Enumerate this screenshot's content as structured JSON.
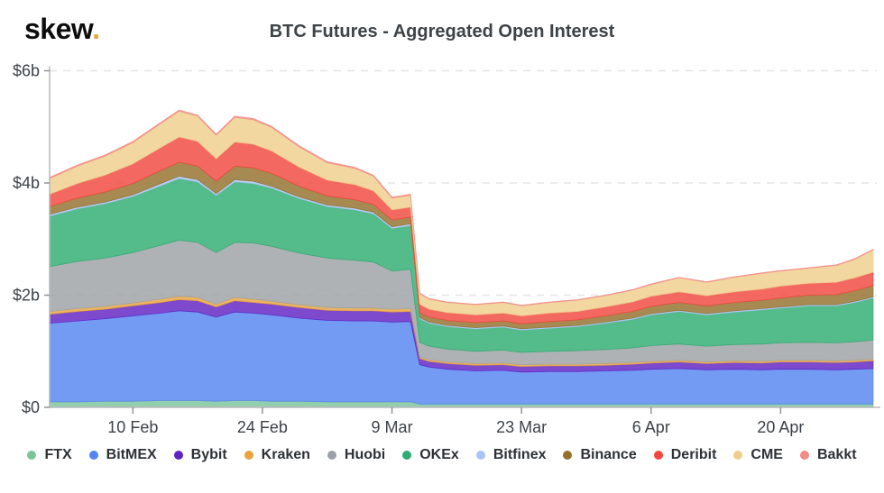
{
  "header": {
    "logo_text": "skew",
    "logo_dot": ".",
    "title": "BTC Futures - Aggregated Open Interest"
  },
  "chart_data": {
    "type": "area",
    "stacked": true,
    "title": "BTC Futures - Aggregated Open Interest",
    "units": "billions USD",
    "xlabel": "",
    "ylabel": "",
    "ylim": [
      0,
      6
    ],
    "x_range": [
      0,
      89
    ],
    "x_unit": "days since 1 Feb 2020",
    "grid": "dashed-horizontal",
    "legend_position": "bottom",
    "y_ticks": [
      {
        "value": 0,
        "label": "$0"
      },
      {
        "value": 2,
        "label": "$2b"
      },
      {
        "value": 4,
        "label": "$4b"
      },
      {
        "value": 6,
        "label": "$6b"
      }
    ],
    "x_ticks": [
      {
        "day": 9,
        "label": "10 Feb"
      },
      {
        "day": 23,
        "label": "24 Feb"
      },
      {
        "day": 37,
        "label": "9 Mar"
      },
      {
        "day": 51,
        "label": "23 Mar"
      },
      {
        "day": 65,
        "label": "6 Apr"
      },
      {
        "day": 79,
        "label": "20 Apr"
      }
    ],
    "days": [
      0,
      3,
      6,
      9,
      12,
      14,
      16,
      18,
      20,
      22,
      24,
      27,
      30,
      33,
      35,
      37,
      39,
      40,
      41,
      43,
      46,
      49,
      51,
      54,
      57,
      60,
      63,
      65,
      68,
      71,
      74,
      77,
      79,
      82,
      85,
      87,
      89
    ],
    "series": [
      {
        "name": "FTX",
        "color": "#7cc49b",
        "values": [
          0.1,
          0.1,
          0.11,
          0.11,
          0.12,
          0.12,
          0.12,
          0.11,
          0.12,
          0.12,
          0.11,
          0.11,
          0.1,
          0.1,
          0.1,
          0.1,
          0.1,
          0.06,
          0.06,
          0.06,
          0.06,
          0.06,
          0.06,
          0.06,
          0.06,
          0.06,
          0.06,
          0.06,
          0.06,
          0.06,
          0.06,
          0.06,
          0.06,
          0.06,
          0.06,
          0.06,
          0.06
        ]
      },
      {
        "name": "BitMEX",
        "color": "#5585f0",
        "values": [
          1.4,
          1.44,
          1.47,
          1.52,
          1.56,
          1.6,
          1.58,
          1.5,
          1.58,
          1.56,
          1.54,
          1.48,
          1.45,
          1.44,
          1.44,
          1.42,
          1.43,
          0.7,
          0.66,
          0.62,
          0.59,
          0.6,
          0.57,
          0.58,
          0.58,
          0.59,
          0.6,
          0.62,
          0.63,
          0.61,
          0.62,
          0.61,
          0.62,
          0.62,
          0.61,
          0.62,
          0.63
        ]
      },
      {
        "name": "Bybit",
        "color": "#6022c3",
        "values": [
          0.16,
          0.17,
          0.17,
          0.18,
          0.19,
          0.2,
          0.2,
          0.18,
          0.2,
          0.19,
          0.19,
          0.19,
          0.18,
          0.18,
          0.18,
          0.18,
          0.18,
          0.11,
          0.1,
          0.1,
          0.1,
          0.1,
          0.1,
          0.1,
          0.1,
          0.1,
          0.11,
          0.11,
          0.12,
          0.11,
          0.12,
          0.12,
          0.13,
          0.13,
          0.13,
          0.13,
          0.14
        ]
      },
      {
        "name": "Kraken",
        "color": "#e8a33d",
        "values": [
          0.05,
          0.05,
          0.05,
          0.05,
          0.06,
          0.06,
          0.06,
          0.05,
          0.06,
          0.06,
          0.05,
          0.05,
          0.05,
          0.05,
          0.05,
          0.05,
          0.05,
          0.03,
          0.03,
          0.03,
          0.03,
          0.03,
          0.03,
          0.03,
          0.03,
          0.03,
          0.03,
          0.03,
          0.03,
          0.03,
          0.03,
          0.03,
          0.03,
          0.03,
          0.03,
          0.03,
          0.03
        ]
      },
      {
        "name": "Huobi",
        "color": "#9da1a5",
        "values": [
          0.8,
          0.84,
          0.86,
          0.9,
          0.96,
          1.0,
          0.98,
          0.92,
          0.98,
          1.0,
          0.98,
          0.92,
          0.88,
          0.85,
          0.82,
          0.68,
          0.7,
          0.26,
          0.24,
          0.23,
          0.22,
          0.23,
          0.22,
          0.23,
          0.24,
          0.25,
          0.26,
          0.28,
          0.29,
          0.28,
          0.29,
          0.31,
          0.31,
          0.32,
          0.32,
          0.33,
          0.34
        ]
      },
      {
        "name": "OKEx",
        "color": "#2eac72",
        "values": [
          0.9,
          0.94,
          0.97,
          1.0,
          1.06,
          1.1,
          1.08,
          1.02,
          1.08,
          1.06,
          1.04,
          0.97,
          0.92,
          0.9,
          0.86,
          0.76,
          0.78,
          0.42,
          0.41,
          0.4,
          0.4,
          0.41,
          0.4,
          0.41,
          0.43,
          0.47,
          0.51,
          0.55,
          0.58,
          0.56,
          0.58,
          0.61,
          0.62,
          0.65,
          0.66,
          0.7,
          0.75
        ]
      },
      {
        "name": "Bitfinex",
        "color": "#a9c4f5",
        "values": [
          0.03,
          0.03,
          0.03,
          0.03,
          0.04,
          0.04,
          0.04,
          0.03,
          0.04,
          0.04,
          0.03,
          0.03,
          0.03,
          0.03,
          0.03,
          0.03,
          0.03,
          0.02,
          0.02,
          0.02,
          0.02,
          0.02,
          0.02,
          0.02,
          0.02,
          0.02,
          0.02,
          0.02,
          0.02,
          0.02,
          0.02,
          0.02,
          0.02,
          0.02,
          0.02,
          0.02,
          0.02
        ]
      },
      {
        "name": "Binance",
        "color": "#94702c",
        "values": [
          0.14,
          0.16,
          0.18,
          0.2,
          0.23,
          0.25,
          0.24,
          0.22,
          0.24,
          0.24,
          0.23,
          0.19,
          0.16,
          0.15,
          0.14,
          0.12,
          0.12,
          0.09,
          0.09,
          0.09,
          0.09,
          0.09,
          0.09,
          0.1,
          0.1,
          0.11,
          0.12,
          0.13,
          0.14,
          0.14,
          0.15,
          0.15,
          0.16,
          0.17,
          0.18,
          0.19,
          0.2
        ]
      },
      {
        "name": "Deribit",
        "color": "#f2473f",
        "values": [
          0.22,
          0.26,
          0.3,
          0.35,
          0.41,
          0.45,
          0.44,
          0.4,
          0.43,
          0.42,
          0.4,
          0.34,
          0.28,
          0.27,
          0.24,
          0.18,
          0.18,
          0.15,
          0.14,
          0.14,
          0.14,
          0.14,
          0.14,
          0.15,
          0.15,
          0.16,
          0.17,
          0.18,
          0.19,
          0.18,
          0.19,
          0.2,
          0.21,
          0.21,
          0.22,
          0.23,
          0.24
        ]
      },
      {
        "name": "CME",
        "color": "#efce8c",
        "values": [
          0.28,
          0.31,
          0.34,
          0.38,
          0.43,
          0.46,
          0.45,
          0.42,
          0.44,
          0.44,
          0.42,
          0.36,
          0.31,
          0.29,
          0.26,
          0.21,
          0.21,
          0.19,
          0.18,
          0.18,
          0.18,
          0.19,
          0.18,
          0.19,
          0.2,
          0.2,
          0.21,
          0.21,
          0.25,
          0.24,
          0.26,
          0.28,
          0.27,
          0.27,
          0.3,
          0.33,
          0.4
        ]
      },
      {
        "name": "Bakkt",
        "color": "#f18b86",
        "values": [
          0.02,
          0.02,
          0.02,
          0.02,
          0.02,
          0.02,
          0.02,
          0.02,
          0.02,
          0.02,
          0.02,
          0.02,
          0.02,
          0.02,
          0.02,
          0.02,
          0.02,
          0.01,
          0.01,
          0.01,
          0.01,
          0.01,
          0.01,
          0.01,
          0.01,
          0.01,
          0.01,
          0.01,
          0.01,
          0.01,
          0.01,
          0.01,
          0.01,
          0.01,
          0.01,
          0.01,
          0.01
        ]
      }
    ]
  }
}
